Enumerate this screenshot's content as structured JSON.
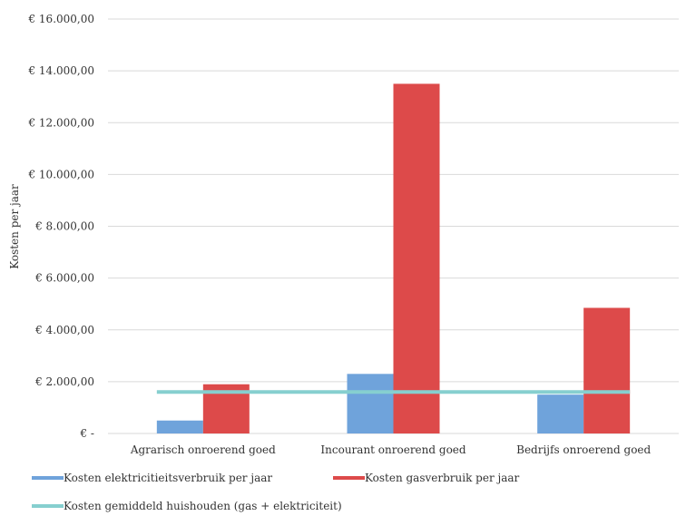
{
  "chart_data": {
    "type": "bar",
    "title": "",
    "xlabel": "",
    "ylabel": "Kosten per jaar",
    "ylim": [
      0,
      16000
    ],
    "grid": true,
    "legend_position": "bottom",
    "y_tick_labels": [
      "€ -",
      "€ 2.000,00",
      "€ 4.000,00",
      "€ 6.000,00",
      "€ 8.000,00",
      "€ 10.000,00",
      "€ 12.000,00",
      "€ 14.000,00",
      "€ 16.000,00"
    ],
    "y_tick_values": [
      0,
      2000,
      4000,
      6000,
      8000,
      10000,
      12000,
      14000,
      16000
    ],
    "categories": [
      "Agrarisch onroerend goed",
      "Incourant onroerend goed",
      "Bedrijfs onroerend goed"
    ],
    "series": [
      {
        "name": "Kosten elektricitieitsverbruik per jaar",
        "type": "bar",
        "color": "#6fa3db",
        "values": [
          500,
          2300,
          1500
        ]
      },
      {
        "name": "Kosten gasverbruik per jaar",
        "type": "bar",
        "color": "#dd4a4a",
        "values": [
          1900,
          13500,
          4850
        ]
      },
      {
        "name": "Kosten gemiddeld huishouden (gas + elektriciteit)",
        "type": "line",
        "color": "#86cfcf",
        "values": [
          1600,
          1600,
          1600
        ]
      }
    ]
  }
}
